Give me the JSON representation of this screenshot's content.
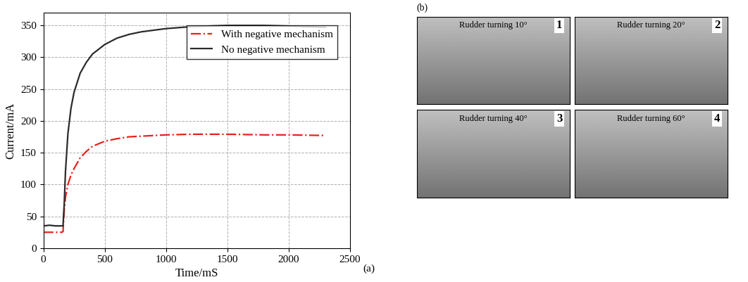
{
  "chart_data": {
    "type": "line",
    "x_label": "Time/mS",
    "y_label": "Current/mA",
    "annotations": [
      "(a)"
    ],
    "x": [
      0,
      50,
      100,
      150,
      160,
      170,
      180,
      200,
      225,
      250,
      300,
      350,
      400,
      500,
      600,
      700,
      800,
      1000,
      1200,
      1500,
      1800,
      2000,
      2300
    ],
    "series": [
      {
        "name": "With negative mechanism",
        "color": "#e8221b",
        "line_style": "dashdot",
        "values": [
          25,
          25,
          25,
          25,
          26,
          60,
          80,
          100,
          115,
          125,
          142,
          152,
          160,
          168,
          172,
          175,
          176,
          178,
          179,
          179,
          178,
          178,
          177
        ]
      },
      {
        "name": "No negative mechanism",
        "color": "#2b2b2b",
        "line_style": "solid",
        "values": [
          35,
          36,
          35,
          35,
          35,
          70,
          120,
          180,
          220,
          245,
          275,
          292,
          305,
          320,
          330,
          336,
          340,
          345,
          348,
          350,
          350,
          349,
          347
        ]
      }
    ],
    "xlim": [
      0,
      2500
    ],
    "xticks": [
      0,
      500,
      1000,
      1500,
      2000,
      2500
    ],
    "ylim": [
      0,
      370
    ],
    "yticks": [
      0,
      50,
      100,
      150,
      200,
      250,
      300,
      350
    ],
    "grid": true,
    "legend": "upper right"
  },
  "photos": {
    "label": "(b)",
    "panels": [
      {
        "number": 1,
        "caption": "Rudder turning 10°"
      },
      {
        "number": 2,
        "caption": "Rudder turning 20°"
      },
      {
        "number": 3,
        "caption": "Rudder turning 40°"
      },
      {
        "number": 4,
        "caption": "Rudder turning 60°"
      }
    ]
  }
}
